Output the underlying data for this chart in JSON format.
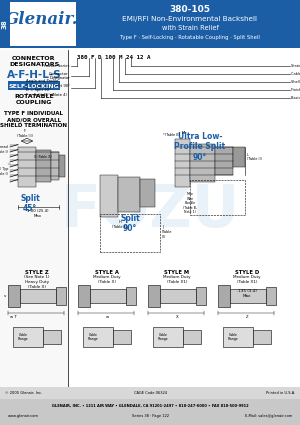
{
  "title_part": "380-105",
  "title_line1": "EMI/RFI Non-Environmental Backshell",
  "title_line2": "with Strain Relief",
  "title_line3": "Type F · Self-Locking · Rotatable Coupling · Split Shell",
  "header_bg": "#1b5ea6",
  "logo_text": "Glenair.",
  "page_num": "38",
  "connector_designators": "CONNECTOR\nDESIGNATORS",
  "afhl_text": "A-F-H-L-S",
  "self_locking_text": "SELF-LOCKING",
  "rotatable_text": "ROTATABLE\nCOUPLING",
  "type_f_text": "TYPE F INDIVIDUAL\nAND/OR OVERALL\nSHIELD TERMINATION",
  "part_number": "380 F D 100 M 24 12 A",
  "ultra_low_text": "Ultra Low-\nProfile Split\n90°",
  "split45_text": "Split\n45°",
  "split90_text": "Split\n90°",
  "style_labels": [
    "STYLE Z",
    "STYLE A",
    "STYLE M",
    "STYLE D"
  ],
  "style_note": [
    "(See Note 1)",
    "",
    "",
    ""
  ],
  "style_duty": [
    "Heavy Duty\n(Table X)",
    "Medium Duty\n(Table X)",
    "Medium Duty\n(Table X1)",
    "Medium Duty\n(Table X1)"
  ],
  "style_extra": [
    "",
    "",
    "",
    ".135 (3.4)\nMax"
  ],
  "footer_company": "GLENAIR, INC. • 1211 AIR WAY • GLENDALE, CA 91201-2497 • 818-247-6000 • FAX 818-500-9912",
  "footer_web": "www.glenair.com",
  "footer_series": "Series 38 · Page 122",
  "footer_email": "E-Mail: sales@glenair.com",
  "copyright": "© 2005 Glenair, Inc.",
  "cage": "CAGE Code 06324",
  "printed": "Printed in U.S.A.",
  "blue_accent": "#1b5ea6",
  "blue_text": "#1b5ea6",
  "bg_color": "#ffffff",
  "header_title_color": "#ffffff",
  "left_panel_bg": "#ffffff",
  "body_bg": "#f5f5f5"
}
